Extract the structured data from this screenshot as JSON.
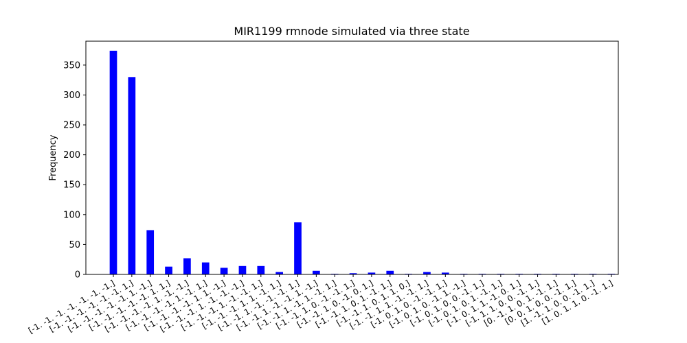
{
  "chart_data": {
    "type": "bar",
    "title": "MIR1199 rmnode simulated via three state",
    "xlabel": "",
    "ylabel": "Frequency",
    "ylim": [
      0,
      390
    ],
    "yticks": [
      0,
      50,
      100,
      150,
      200,
      250,
      300,
      350
    ],
    "bar_color": "#0000ff",
    "grid": false,
    "categories": [
      "[-1. -1. -1. -1. -1. -1. -1.]",
      "[-1. -1. -1. -1. -1. -1. 1.]",
      "[-1. -1. -1. -1. -1. 1. -1.]",
      "[-1. -1. -1. -1. -1. 1. 1.]",
      "[-1. -1. -1. -1. 1. -1. -1.]",
      "[-1. -1. -1. -1. 1. -1. 1.]",
      "[-1. -1. -1. -1. 1. 1. -1.]",
      "[-1. -1. -1. 1. -1. -1. -1.]",
      "[-1. -1. -1. 1. -1. -1. 1.]",
      "[-1. -1. -1. 1. 1. -1. 1.]",
      "[-1. -1. 1. -1. -1. -1. 1.]",
      "[-1. -1. 1. -1. -1. 1. -1.]",
      "[-1. -1. 1. -1. 1. -1. 1.]",
      "[-1. -1. 1. 0. -1. -1. 1.]",
      "[-1. -1. 1. 0. -1. 0. 1.]",
      "[-1. -1. 1. 0. 1. -1. 1.]",
      "[-1. -1. 1. 0. 1. 1. 0.]",
      "[-1. -1. 1. 1. -1. -1. 1.]",
      "[-1. 0. 1. 0. -1. -1. 1.]",
      "[-1. 0. 1. 0. -1. 1. -1.]",
      "[-1. 0. 1. 0. 0. -1. 1.]",
      "[-1. 0. 1. 0. 1. -1. 1.]",
      "[-1. 0. 1. 1. -1. 0. 1.]",
      "[-1. 1. 1. 0. 0. -1. 1.]",
      "[0. -1. 1. 0. 1. -1. 1.]",
      "[0. 0. 1. 0. 0. -1. 1.]",
      "[1. -1. 1. 0. 0. -1. 1.]",
      "[1. 0. 1. 1. 0. -1. 1.]"
    ],
    "values": [
      374,
      330,
      74,
      13,
      27,
      20,
      11,
      14,
      14,
      4,
      87,
      6,
      1,
      2,
      3,
      6,
      1,
      4,
      3,
      1,
      1,
      1,
      1,
      1,
      1,
      1,
      1,
      1
    ]
  }
}
